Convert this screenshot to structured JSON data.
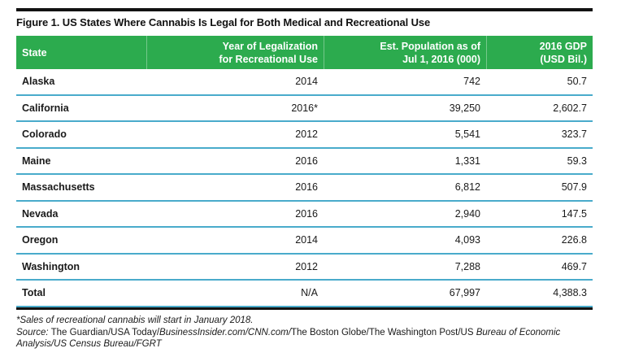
{
  "title": "Figure 1. US States Where Cannabis Is Legal for Both Medical and Recreational Use",
  "colors": {
    "header_green": "#2cab4e",
    "row_divider_blue": "#49abcb",
    "rule_black": "#121212"
  },
  "table": {
    "headers": [
      {
        "lines": [
          "State"
        ]
      },
      {
        "lines": [
          "Year of Legalization",
          "for Recreational Use"
        ]
      },
      {
        "lines": [
          "Est. Population as of",
          "Jul 1, 2016 (000)"
        ]
      },
      {
        "lines": [
          "2016 GDP",
          "(USD Bil.)"
        ]
      }
    ],
    "rows": [
      {
        "state": "Alaska",
        "year": "2014",
        "population": "742",
        "gdp": "50.7"
      },
      {
        "state": "California",
        "year": "2016*",
        "population": "39,250",
        "gdp": "2,602.7"
      },
      {
        "state": "Colorado",
        "year": "2012",
        "population": "5,541",
        "gdp": "323.7"
      },
      {
        "state": "Maine",
        "year": "2016",
        "population": "1,331",
        "gdp": "59.3"
      },
      {
        "state": "Massachusetts",
        "year": "2016",
        "population": "6,812",
        "gdp": "507.9"
      },
      {
        "state": "Nevada",
        "year": "2016",
        "population": "2,940",
        "gdp": "147.5"
      },
      {
        "state": "Oregon",
        "year": "2014",
        "population": "4,093",
        "gdp": "226.8"
      },
      {
        "state": "Washington",
        "year": "2012",
        "population": "7,288",
        "gdp": "469.7"
      },
      {
        "state": "Total",
        "year": "N/A",
        "population": "67,997",
        "gdp": "4,388.3"
      }
    ]
  },
  "footnotes": {
    "note": "*Sales of recreational cannabis will start in January 2018.",
    "source": {
      "label": "Source:",
      "seg1": " The Guardian/USA Today/",
      "seg2": "BusinessInsider.com/CNN.com/",
      "seg3": "The Boston Globe/The Washington Post/US ",
      "seg4": "Bureau of Economic Analysis/US Census Bureau/FGRT"
    }
  }
}
